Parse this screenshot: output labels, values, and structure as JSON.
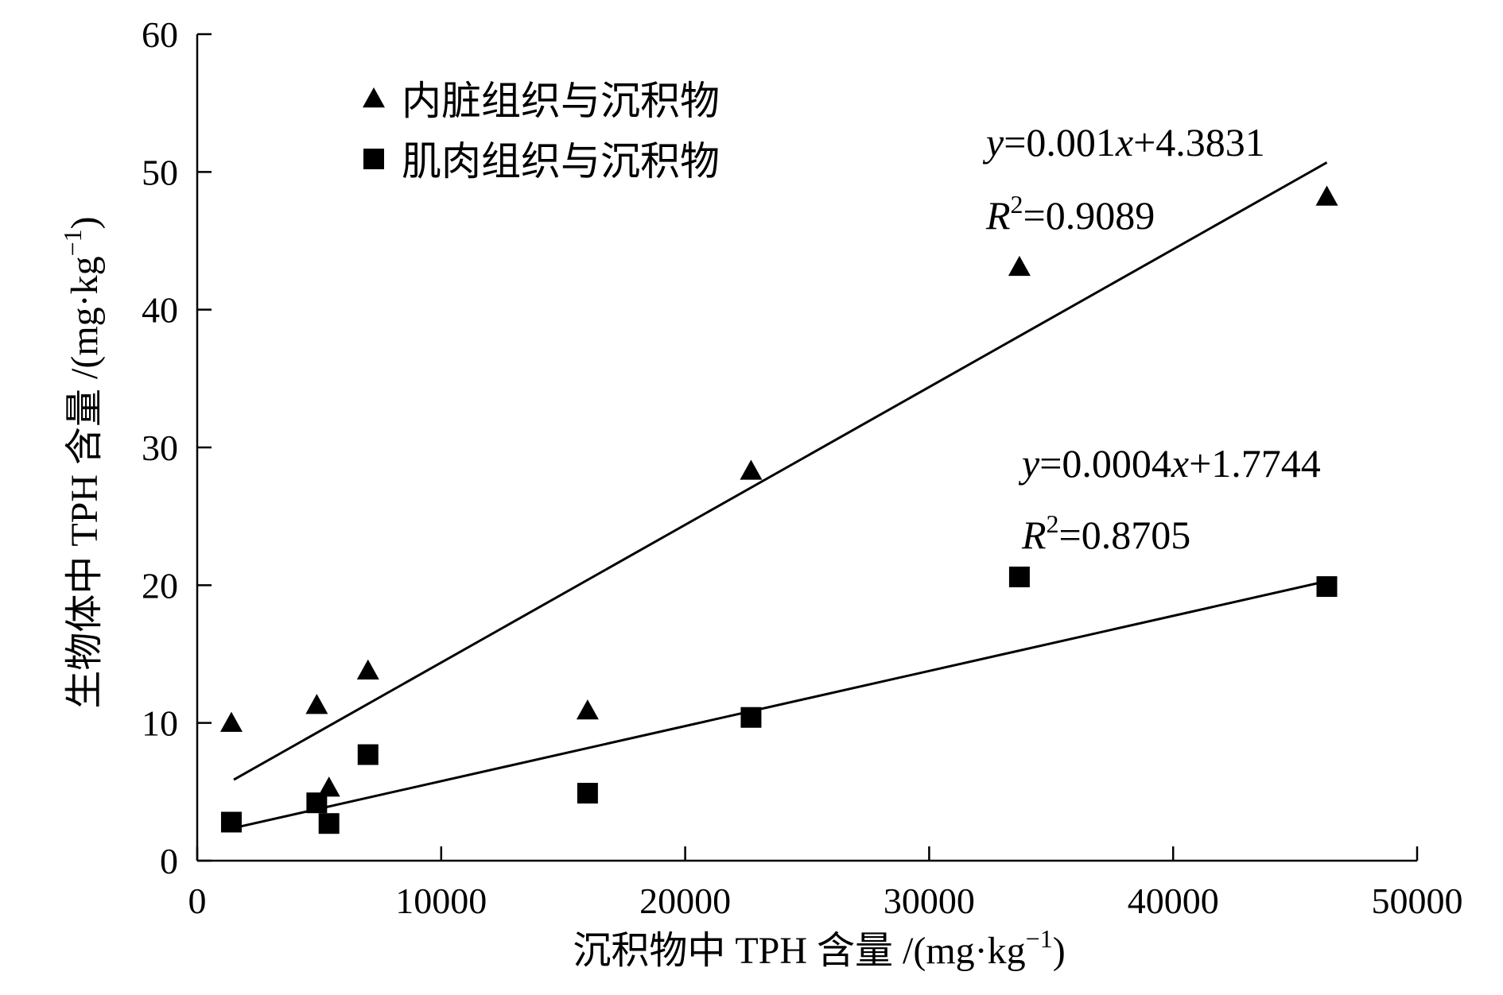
{
  "chart_data": {
    "type": "scatter",
    "xlabel": "沉积物中 TPH 含量 /(mg·kg",
    "xlabel_unit_sup": "−1",
    "xlabel_unit_close": ")",
    "ylabel": "生物体中 TPH 含量 /(mg·kg",
    "ylabel_unit_sup": "−1",
    "ylabel_unit_close": ")",
    "xlim": [
      0,
      50000
    ],
    "ylim": [
      0,
      60
    ],
    "xticks": [
      0,
      10000,
      20000,
      30000,
      40000,
      50000
    ],
    "yticks": [
      0,
      10,
      20,
      30,
      40,
      50,
      60
    ],
    "grid": false,
    "legend_position": "top-left",
    "series": [
      {
        "name": "内脏组织与沉积物",
        "marker": "triangle",
        "color": "#000000",
        "points": [
          {
            "x": 1400,
            "y": 10.0
          },
          {
            "x": 4900,
            "y": 11.3
          },
          {
            "x": 5400,
            "y": 5.3
          },
          {
            "x": 7000,
            "y": 13.8
          },
          {
            "x": 16000,
            "y": 10.9
          },
          {
            "x": 22700,
            "y": 28.3
          },
          {
            "x": 33700,
            "y": 43.1
          },
          {
            "x": 46300,
            "y": 48.2
          }
        ],
        "fit": {
          "slope": 0.001,
          "intercept": 4.3831,
          "x_start": 1500,
          "x_end": 46300
        },
        "equation": {
          "y": "y",
          "main": "=0.001",
          "x": "x",
          "rest": "+4.3831"
        },
        "r2": {
          "R": "R",
          "sup": "2",
          "rest": "=0.9089"
        }
      },
      {
        "name": "肌肉组织与沉积物",
        "marker": "square",
        "color": "#000000",
        "points": [
          {
            "x": 1400,
            "y": 2.8
          },
          {
            "x": 4900,
            "y": 4.2
          },
          {
            "x": 5400,
            "y": 2.7
          },
          {
            "x": 7000,
            "y": 7.7
          },
          {
            "x": 16000,
            "y": 4.9
          },
          {
            "x": 22700,
            "y": 10.4
          },
          {
            "x": 33700,
            "y": 20.6
          },
          {
            "x": 46300,
            "y": 19.9
          }
        ],
        "fit": {
          "slope": 0.0004,
          "intercept": 1.7744,
          "x_start": 1500,
          "x_end": 46300
        },
        "equation": {
          "y": "y",
          "main": "=0.0004",
          "x": "x",
          "rest": "+1.7744"
        },
        "r2": {
          "R": "R",
          "sup": "2",
          "rest": "=0.8705"
        }
      }
    ]
  }
}
